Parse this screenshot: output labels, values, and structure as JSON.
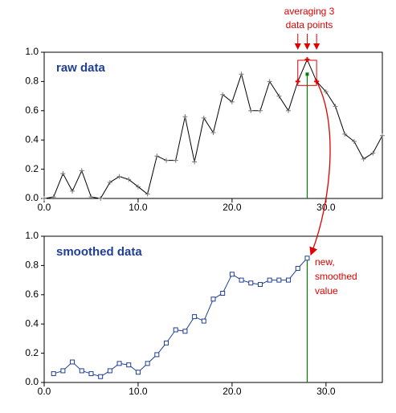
{
  "chart_data": [
    {
      "type": "line",
      "xlim": [
        0,
        36
      ],
      "ylim": [
        0,
        1
      ],
      "xticks": [
        {
          "value": 0,
          "label": "0.0"
        },
        {
          "value": 10,
          "label": "10.0"
        },
        {
          "value": 20,
          "label": "20.0"
        },
        {
          "value": 30,
          "label": "30.0"
        }
      ],
      "yticks": [
        {
          "value": 0,
          "label": "0.0"
        },
        {
          "value": 0.2,
          "label": "0.2"
        },
        {
          "value": 0.4,
          "label": "0.4"
        },
        {
          "value": 0.6,
          "label": "0.6"
        },
        {
          "value": 0.8,
          "label": "0.8"
        },
        {
          "value": 1,
          "label": "1.0"
        }
      ],
      "annotation": [
        "averaging 3",
        "data points"
      ],
      "x": [
        0,
        1,
        2,
        3,
        4,
        5,
        6,
        7,
        8,
        9,
        10,
        11,
        12,
        13,
        14,
        15,
        16,
        17,
        18,
        19,
        20,
        21,
        22,
        23,
        24,
        25,
        26,
        27,
        28,
        29,
        30,
        31,
        32,
        33,
        34,
        35,
        36
      ],
      "series": [
        {
          "name": "raw data",
          "color": "#000000",
          "marker": "plus",
          "values": [
            0.0,
            0.01,
            0.17,
            0.05,
            0.19,
            0.01,
            0.0,
            0.11,
            0.15,
            0.13,
            0.08,
            0.03,
            0.29,
            0.26,
            0.26,
            0.56,
            0.25,
            0.55,
            0.45,
            0.71,
            0.66,
            0.85,
            0.6,
            0.6,
            0.8,
            0.7,
            0.6,
            0.8,
            0.95,
            0.8,
            0.73,
            0.63,
            0.44,
            0.39,
            0.27,
            0.31,
            0.43
          ]
        }
      ]
    },
    {
      "type": "line",
      "xlim": [
        0,
        36
      ],
      "ylim": [
        0,
        1
      ],
      "xticks": [
        {
          "value": 0,
          "label": "0.0"
        },
        {
          "value": 10,
          "label": "10.0"
        },
        {
          "value": 20,
          "label": "20.0"
        },
        {
          "value": 30,
          "label": "30.0"
        }
      ],
      "yticks": [
        {
          "value": 0,
          "label": "0.0"
        },
        {
          "value": 0.2,
          "label": "0.2"
        },
        {
          "value": 0.4,
          "label": "0.4"
        },
        {
          "value": 0.6,
          "label": "0.6"
        },
        {
          "value": 0.8,
          "label": "0.8"
        },
        {
          "value": 1,
          "label": "1.0"
        }
      ],
      "annotation": [
        "new,",
        "smoothed",
        "value"
      ],
      "x": [
        1,
        2,
        3,
        4,
        5,
        6,
        7,
        8,
        9,
        10,
        11,
        12,
        13,
        14,
        15,
        16,
        17,
        18,
        19,
        20,
        21,
        22,
        23,
        24,
        25,
        26,
        27,
        28
      ],
      "series": [
        {
          "name": "smoothed data",
          "color": "#1f3f94",
          "marker": "square",
          "values": [
            0.06,
            0.08,
            0.14,
            0.08,
            0.06,
            0.04,
            0.08,
            0.13,
            0.12,
            0.07,
            0.13,
            0.19,
            0.27,
            0.36,
            0.35,
            0.45,
            0.42,
            0.57,
            0.61,
            0.74,
            0.7,
            0.68,
            0.67,
            0.7,
            0.7,
            0.7,
            0.78,
            0.85
          ]
        }
      ]
    }
  ]
}
